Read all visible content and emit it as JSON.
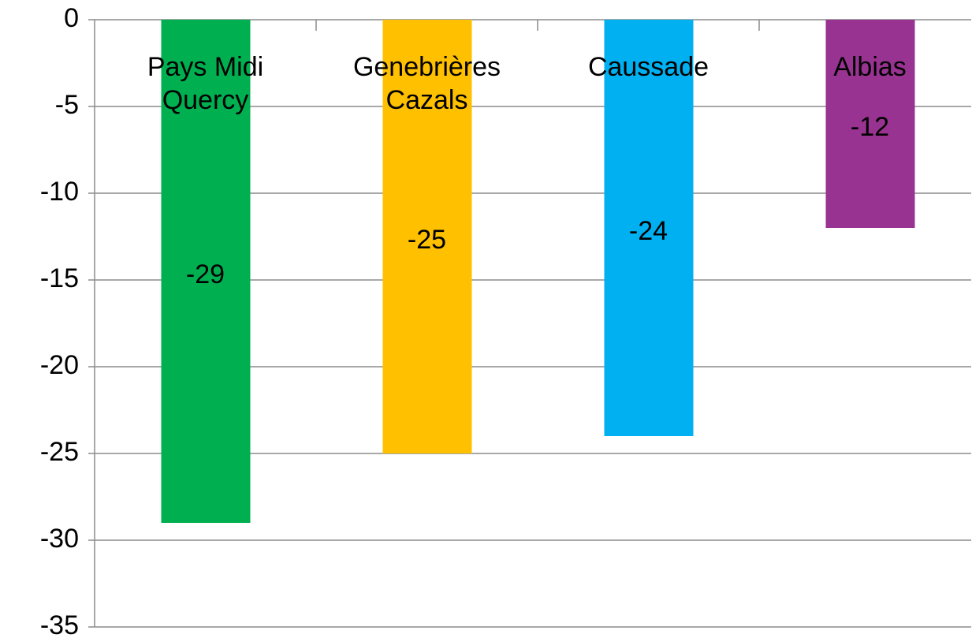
{
  "chart_data": {
    "type": "bar",
    "categories": [
      "Pays Midi Quercy",
      "Genebrières Cazals",
      "Caussade",
      "Albias"
    ],
    "values": [
      -29,
      -25,
      -24,
      -12
    ],
    "colors": [
      "#00b050",
      "#ffc000",
      "#00b0f0",
      "#993391"
    ],
    "ylim": [
      -35,
      0
    ],
    "yticks": [
      0,
      -5,
      -10,
      -15,
      -20,
      -25,
      -30,
      -35
    ],
    "grid": true
  }
}
